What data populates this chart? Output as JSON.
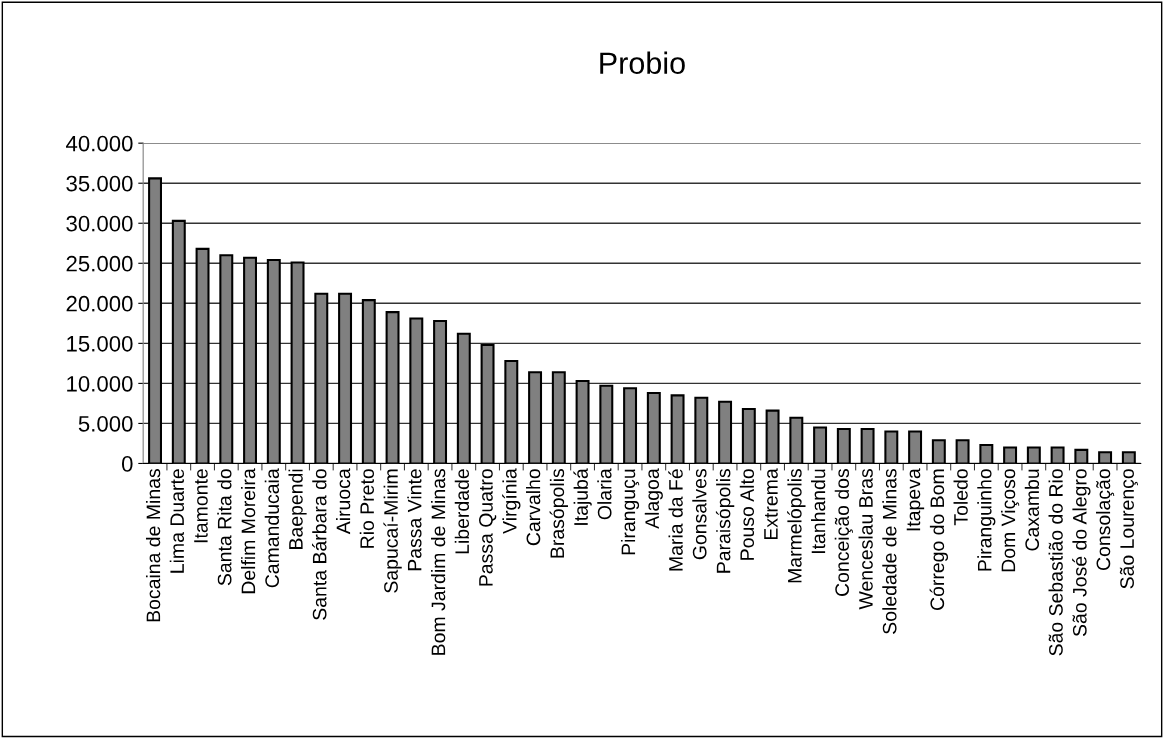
{
  "chart_data": {
    "type": "bar",
    "title": "Probio",
    "categories": [
      "Bocaina de Minas",
      "Lima Duarte",
      "Itamonte",
      "Santa Rita do",
      "Delfim Moreira",
      "Camanducaia",
      "Baependi",
      "Santa Bárbara do",
      "Airuoca",
      "Rio Preto",
      "Sapucaí-Mirim",
      "Passa Vinte",
      "Bom Jardim de Minas",
      "Liberdade",
      "Passa Quatro",
      "Virgínia",
      "Carvalho",
      "Brasópolis",
      "Itajubá",
      "Olaria",
      "Piranguçu",
      "Alagoa",
      "Maria da Fé",
      "Gonsalves",
      "Paraisópolis",
      "Pouso Alto",
      "Extrema",
      "Marmelópolis",
      "Itanhandu",
      "Conceição dos",
      "Wenceslau Bras",
      "Soledade de Minas",
      "Itapeva",
      "Córrego do Bom",
      "Toledo",
      "Piranguinho",
      "Dom Viçoso",
      "Caxambu",
      "São Sebastião do Rio",
      "São José do Alegro",
      "Consolação",
      "São Lourenço"
    ],
    "values": [
      35600,
      30300,
      26800,
      26000,
      25700,
      25400,
      25100,
      21200,
      21200,
      20400,
      18900,
      18100,
      17800,
      16200,
      14800,
      12800,
      11400,
      11400,
      10300,
      9700,
      9400,
      8800,
      8500,
      8200,
      7700,
      6800,
      6600,
      5700,
      4500,
      4300,
      4300,
      4000,
      4000,
      2900,
      2900,
      2300,
      2000,
      2000,
      2000,
      1700,
      1400,
      1400
    ],
    "color": "#808080",
    "ylim": [
      0,
      40000
    ],
    "yticks": [
      0,
      {
        "value": 5000,
        "label": "5.000"
      },
      {
        "value": 10000,
        "label": "10.000"
      },
      {
        "value": 15000,
        "label": "15.000"
      },
      {
        "value": 20000,
        "label": "20.000"
      },
      {
        "value": 25000,
        "label": "25.000"
      },
      {
        "value": 30000,
        "label": "30.000"
      },
      {
        "value": 35000,
        "label": "35.000"
      },
      {
        "value": 40000,
        "label": "40.000"
      }
    ],
    "grid": "y",
    "legend": false
  }
}
